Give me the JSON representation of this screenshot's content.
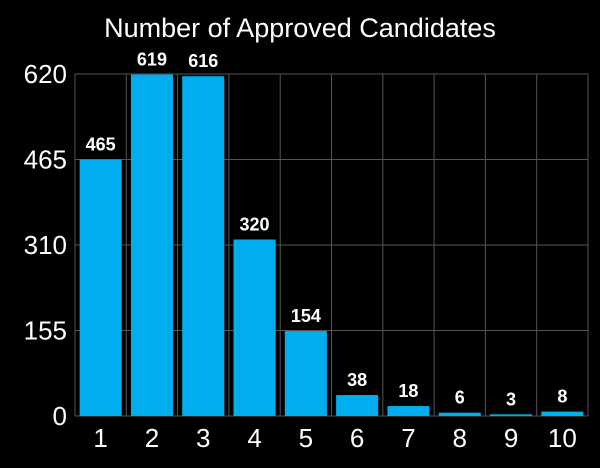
{
  "chart_data": {
    "type": "bar",
    "title": "Number of Approved Candidates",
    "xlabel": "",
    "ylabel": "",
    "categories": [
      "1",
      "2",
      "3",
      "4",
      "5",
      "6",
      "7",
      "8",
      "9",
      "10"
    ],
    "values": [
      465,
      619,
      616,
      320,
      154,
      38,
      18,
      6,
      3,
      8
    ],
    "data_labels": [
      "465",
      "619",
      "616",
      "320",
      "154",
      "38",
      "18",
      "6",
      "3",
      "8"
    ],
    "ylim": [
      0,
      620
    ],
    "yticks": [
      0,
      155,
      310,
      465,
      620
    ],
    "ytick_labels": [
      "0",
      "155",
      "310",
      "465",
      "620"
    ],
    "grid": true,
    "legend": "none",
    "colors": {
      "background": "#000000",
      "bar": "#00adef",
      "grid": "#555555",
      "text": "#ffffff"
    }
  }
}
